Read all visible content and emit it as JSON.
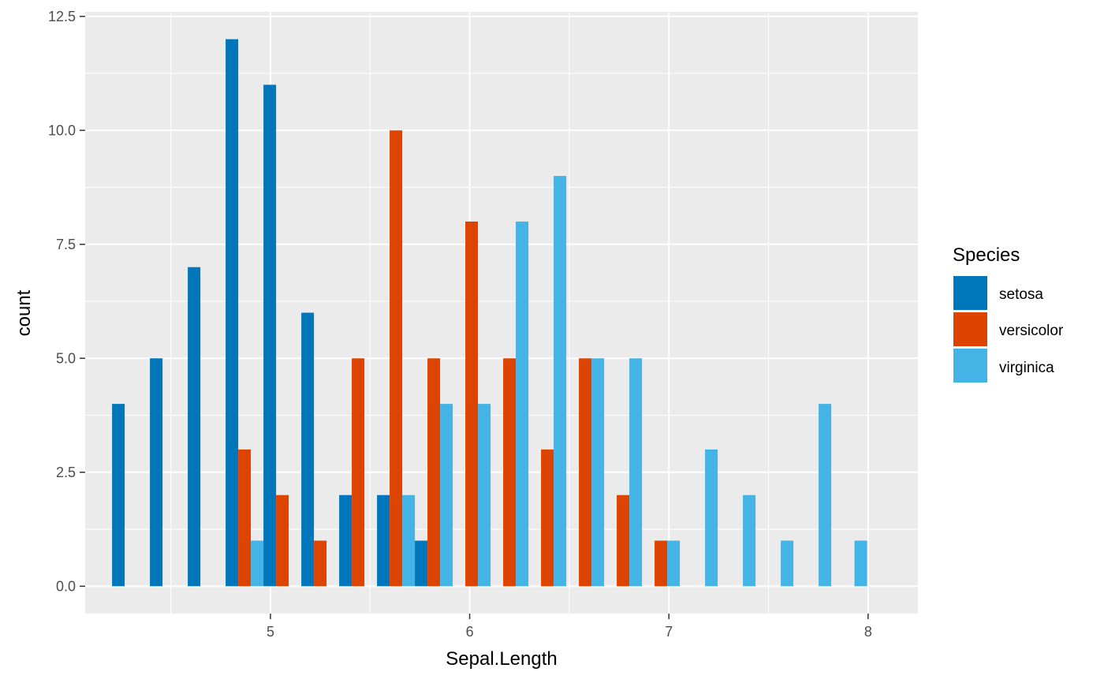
{
  "chart_data": {
    "type": "bar",
    "xlabel": "Sepal.Length",
    "ylabel": "count",
    "xlim": [
      4.07,
      8.25
    ],
    "ylim": [
      -0.6,
      12.6
    ],
    "x_ticks": [
      5,
      6,
      7,
      8
    ],
    "x_tick_labels": [
      "5",
      "6",
      "7",
      "8"
    ],
    "y_ticks": [
      0,
      2.5,
      5,
      7.5,
      10,
      12.5
    ],
    "y_tick_labels": [
      "0.0",
      "2.5",
      "5.0",
      "7.5",
      "10.0",
      "12.5"
    ],
    "grid": true,
    "legend": {
      "title": "Species",
      "position": "right",
      "entries": [
        "setosa",
        "versicolor",
        "virginica"
      ]
    },
    "bin_centers": [
      4.3,
      4.49,
      4.68,
      4.87,
      5.06,
      5.25,
      5.44,
      5.63,
      5.82,
      6.01,
      6.2,
      6.39,
      6.58,
      6.77,
      6.96,
      7.15,
      7.34,
      7.53,
      7.72,
      7.9
    ],
    "series": [
      {
        "name": "setosa",
        "color": "#0077BB",
        "values": [
          4,
          5,
          7,
          12,
          11,
          6,
          2,
          2,
          1,
          0,
          0,
          0,
          0,
          0,
          0,
          0,
          0,
          0,
          0,
          0
        ]
      },
      {
        "name": "versicolor",
        "color": "#DD4400",
        "values": [
          0,
          0,
          0,
          3,
          2,
          1,
          5,
          10,
          5,
          8,
          5,
          3,
          5,
          2,
          1,
          0,
          0,
          0,
          0,
          0
        ]
      },
      {
        "name": "virginica",
        "color": "#44B3E5",
        "values": [
          0,
          0,
          0,
          1,
          0,
          0,
          0,
          2,
          4,
          4,
          8,
          9,
          5,
          5,
          1,
          3,
          2,
          1,
          4,
          1
        ]
      }
    ]
  }
}
